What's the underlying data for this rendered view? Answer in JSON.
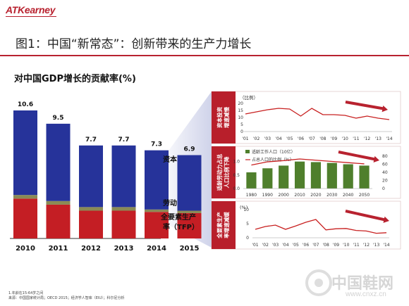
{
  "header": {
    "brand": "ATKearney",
    "title": "图1：中国“新常态”：创新带来的生产力增长"
  },
  "left_panel": {
    "title": "对中国GDP增长的贡献率(%)",
    "legend": {
      "capital": "资本",
      "labor": "劳动",
      "tfp": "全要素生产率（TFP）"
    }
  },
  "footnote": {
    "line1": "1.年龄在15-64岁之间",
    "line2": "来源：中国国家统计局；OECD 2015；经济学人智库（EIU）；科尔尼分析"
  },
  "watermark": {
    "text": "中国鞋网",
    "sub": "www.cnxz.cn"
  },
  "colors": {
    "accent": "#b8222f",
    "capital": "#26339a",
    "labor": "#8a8a55",
    "tfp": "#c41e24",
    "panel": "#b81f2b",
    "green": "#4f7f2c",
    "line": "#c82020"
  },
  "chart_data": [
    {
      "type": "bar",
      "stacked": true,
      "title": "对中国GDP增长的贡献率(%)",
      "categories": [
        "2010",
        "2011",
        "2012",
        "2013",
        "2014",
        "2015"
      ],
      "totals": [
        10.6,
        9.5,
        7.7,
        7.7,
        7.3,
        6.9
      ],
      "series": [
        {
          "name": "全要素生产率（TFP）",
          "values": [
            3.3,
            2.8,
            2.3,
            2.3,
            2.2,
            2.1
          ]
        },
        {
          "name": "劳动",
          "values": [
            0.3,
            0.3,
            0.3,
            0.3,
            0.2,
            0.2
          ]
        },
        {
          "name": "资本",
          "values": [
            7.0,
            6.4,
            5.1,
            5.1,
            4.9,
            4.6
          ]
        }
      ],
      "ylim": [
        0,
        11
      ]
    },
    {
      "type": "line",
      "label": "资本投资增速减慢",
      "x": [
        "'01",
        "'02",
        "'03",
        "'04",
        "'05",
        "'06",
        "'07",
        "'08",
        "'09",
        "'10",
        "'11",
        "'12",
        "'13",
        "'14"
      ],
      "y": [
        12.5,
        14,
        15.5,
        16.5,
        16,
        11,
        16.5,
        12,
        12,
        11.5,
        9.5,
        11,
        9.5,
        8.5
      ],
      "ylabel": "（比例）",
      "yticks": [
        0,
        5,
        10,
        15,
        20
      ],
      "ylim": [
        0,
        20
      ]
    },
    {
      "type": "bar",
      "label": "适龄劳动力占总人口比例下降",
      "categories": [
        "1980",
        "1990",
        "2000",
        "2010",
        "2020",
        "2030",
        "2040",
        "2050"
      ],
      "bar_series": {
        "name": "适龄工作人口（10亿）",
        "values": [
          0.6,
          0.75,
          0.85,
          1.0,
          0.98,
          0.95,
          0.9,
          0.85
        ]
      },
      "line_series": {
        "name": "占总人口的比例（%）",
        "values": [
          58,
          66,
          69,
          73,
          70,
          67,
          64,
          61
        ]
      },
      "yticks_left": [
        0.0,
        0.5,
        1.0
      ],
      "yticks_right": [
        0,
        20,
        40,
        60,
        80
      ],
      "ylim_left": [
        0,
        1.2
      ],
      "ylim_right": [
        0,
        80
      ]
    },
    {
      "type": "line",
      "label": "全要素生产率增速减缓",
      "x": [
        "'01",
        "'02",
        "'03",
        "'04",
        "'05",
        "'06",
        "'07",
        "'08",
        "'09",
        "'10",
        "'11",
        "'12",
        "'13",
        "'14"
      ],
      "y": [
        3,
        4,
        4.5,
        3,
        4.2,
        5.5,
        6.5,
        2.8,
        3.2,
        3.3,
        2.6,
        2.4,
        1.6,
        1.8
      ],
      "ylabel": "(%)",
      "yticks": [
        0,
        5,
        10
      ],
      "ylim": [
        0,
        10
      ]
    }
  ]
}
